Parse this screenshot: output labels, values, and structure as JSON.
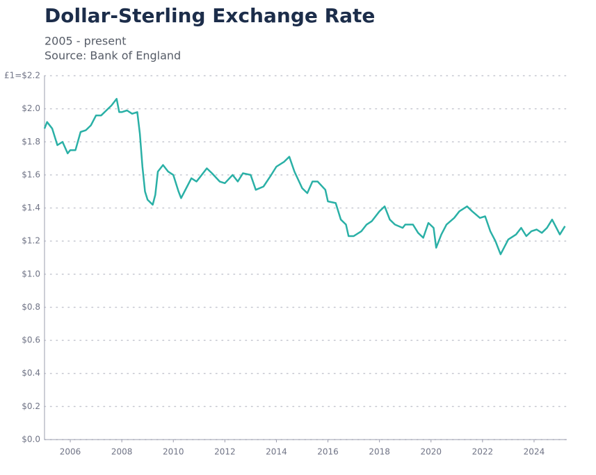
{
  "chart_data": {
    "type": "line",
    "title": "Dollar-Sterling Exchange Rate",
    "subtitle": "2005 - present",
    "source": "Source: Bank of England",
    "x": [
      2005.0,
      2005.1,
      2005.3,
      2005.5,
      2005.7,
      2005.9,
      2006.0,
      2006.2,
      2006.4,
      2006.6,
      2006.8,
      2007.0,
      2007.2,
      2007.4,
      2007.6,
      2007.8,
      2007.9,
      2008.0,
      2008.2,
      2008.4,
      2008.6,
      2008.7,
      2008.8,
      2008.9,
      2009.0,
      2009.2,
      2009.3,
      2009.4,
      2009.6,
      2009.8,
      2010.0,
      2010.2,
      2010.3,
      2010.5,
      2010.7,
      2010.9,
      2011.0,
      2011.3,
      2011.5,
      2011.8,
      2012.0,
      2012.3,
      2012.5,
      2012.7,
      2013.0,
      2013.2,
      2013.5,
      2013.8,
      2014.0,
      2014.3,
      2014.5,
      2014.7,
      2015.0,
      2015.2,
      2015.4,
      2015.6,
      2015.9,
      2016.0,
      2016.3,
      2016.5,
      2016.7,
      2016.8,
      2017.0,
      2017.3,
      2017.5,
      2017.7,
      2018.0,
      2018.2,
      2018.4,
      2018.6,
      2018.9,
      2019.0,
      2019.3,
      2019.5,
      2019.7,
      2019.9,
      2020.1,
      2020.2,
      2020.4,
      2020.6,
      2020.9,
      2021.1,
      2021.4,
      2021.6,
      2021.9,
      2022.1,
      2022.3,
      2022.5,
      2022.7,
      2022.8,
      2023.0,
      2023.3,
      2023.5,
      2023.7,
      2023.9,
      2024.1,
      2024.3,
      2024.5,
      2024.7,
      2024.9,
      2025.0,
      2025.2
    ],
    "series": [
      {
        "color": "#2ab0a6",
        "values": [
          1.88,
          1.92,
          1.88,
          1.78,
          1.8,
          1.73,
          1.75,
          1.75,
          1.86,
          1.87,
          1.9,
          1.96,
          1.96,
          1.99,
          2.02,
          2.06,
          1.98,
          1.98,
          1.99,
          1.97,
          1.98,
          1.85,
          1.65,
          1.5,
          1.45,
          1.42,
          1.48,
          1.62,
          1.66,
          1.62,
          1.6,
          1.5,
          1.46,
          1.52,
          1.58,
          1.56,
          1.58,
          1.64,
          1.61,
          1.56,
          1.55,
          1.6,
          1.56,
          1.61,
          1.6,
          1.51,
          1.53,
          1.6,
          1.65,
          1.68,
          1.71,
          1.62,
          1.52,
          1.49,
          1.56,
          1.56,
          1.51,
          1.44,
          1.43,
          1.33,
          1.3,
          1.23,
          1.23,
          1.26,
          1.3,
          1.32,
          1.38,
          1.41,
          1.33,
          1.3,
          1.28,
          1.3,
          1.3,
          1.25,
          1.22,
          1.31,
          1.28,
          1.16,
          1.24,
          1.3,
          1.34,
          1.38,
          1.41,
          1.38,
          1.34,
          1.35,
          1.26,
          1.2,
          1.12,
          1.15,
          1.21,
          1.24,
          1.28,
          1.23,
          1.26,
          1.27,
          1.25,
          1.28,
          1.33,
          1.27,
          1.24,
          1.29
        ]
      }
    ],
    "xlim": [
      2005.0,
      2025.27
    ],
    "xticks": [
      2006,
      2008,
      2010,
      2012,
      2014,
      2016,
      2018,
      2020,
      2022,
      2024
    ],
    "ylim": [
      0,
      2.2
    ],
    "yticks": [
      {
        "value": 0,
        "label": "$0.0"
      },
      {
        "value": 0.2,
        "label": "$0.2"
      },
      {
        "value": 0.4,
        "label": "$0.4"
      },
      {
        "value": 0.6,
        "label": "$0.6"
      },
      {
        "value": 0.8,
        "label": "$0.8"
      },
      {
        "value": 1.0,
        "label": "$1.0"
      },
      {
        "value": 1.2,
        "label": "$1.2"
      },
      {
        "value": 1.4,
        "label": "$1.4"
      },
      {
        "value": 1.6,
        "label": "$1.6"
      },
      {
        "value": 1.8,
        "label": "$1.8"
      },
      {
        "value": 2.0,
        "label": "$2.0"
      },
      {
        "value": 2.2,
        "label": "£1=$2.2"
      }
    ],
    "grid": true
  }
}
